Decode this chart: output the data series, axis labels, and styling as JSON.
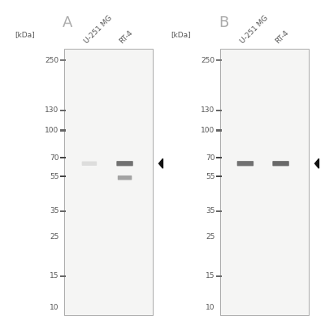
{
  "background_color": "#ffffff",
  "panel_label_color": "#aaaaaa",
  "panel_label_fontsize": 13,
  "kda_label_fontsize": 6.5,
  "sample_label_fontsize": 6.5,
  "ladder_color": "#555555",
  "band_dark": "#444444",
  "band_faint": "#999999",
  "arrow_color": "#111111",
  "kda_values": [
    250,
    130,
    100,
    70,
    55,
    35,
    25,
    15,
    10
  ],
  "ladder_bands_A": [
    250,
    130,
    100,
    70,
    55,
    35,
    15
  ],
  "ladder_bands_B": [
    250,
    130,
    100,
    70,
    55,
    35,
    15
  ],
  "sample_labels": [
    "U-251 MG",
    "RT-4"
  ],
  "panels": [
    {
      "label": "A",
      "lane1_band_kda": 65,
      "lane1_alpha": 0.12,
      "lane2_band_kda": 65,
      "lane2_alpha": 0.65,
      "lane2_band2_kda": 54,
      "lane2_band2_alpha": 0.4,
      "arrow_kda": 65
    },
    {
      "label": "B",
      "lane1_band_kda": 65,
      "lane1_alpha": 0.65,
      "lane2_band_kda": 65,
      "lane2_alpha": 0.7,
      "lane2_band2_kda": null,
      "lane2_band2_alpha": 0,
      "arrow_kda": 65
    }
  ]
}
